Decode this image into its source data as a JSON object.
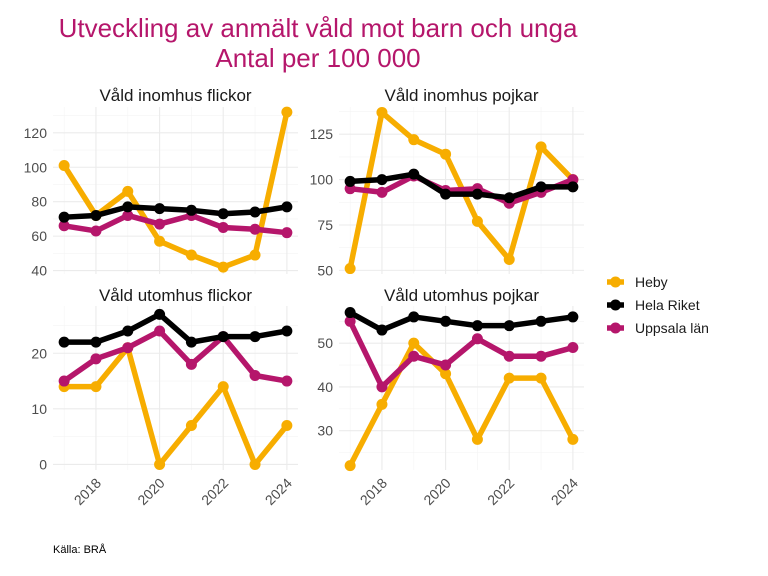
{
  "chart_data": {
    "type": "line",
    "title": "Utveckling av anmält våld mot barn och unga",
    "subtitle": "Antal per 100 000",
    "caption": "Källa: BRÅ",
    "x": [
      2017,
      2018,
      2019,
      2020,
      2021,
      2022,
      2023,
      2024
    ],
    "x_tick_labels": [
      "2018",
      "2020",
      "2022",
      "2024"
    ],
    "x_tick_values": [
      2018,
      2020,
      2022,
      2024
    ],
    "legend": {
      "position": "right",
      "entries": [
        {
          "name": "Heby",
          "color": "#f7ad00"
        },
        {
          "name": "Hela Riket",
          "color": "#000000"
        },
        {
          "name": "Uppsala län",
          "color": "#b5166b"
        }
      ]
    },
    "grid": true,
    "panels": [
      {
        "title": "Våld inomhus flickor",
        "ylim": [
          38,
          135
        ],
        "y_ticks": [
          40,
          60,
          80,
          100,
          120
        ],
        "series": [
          {
            "name": "Heby",
            "values": [
              101,
              72,
              86,
              57,
              49,
              42,
              49,
              132
            ]
          },
          {
            "name": "Hela Riket",
            "values": [
              71,
              72,
              77,
              76,
              75,
              73,
              74,
              77
            ]
          },
          {
            "name": "Uppsala län",
            "values": [
              66,
              63,
              72,
              67,
              72,
              65,
              64,
              62
            ]
          }
        ]
      },
      {
        "title": "Våld inomhus pojkar",
        "ylim": [
          48,
          140
        ],
        "y_ticks": [
          50,
          75,
          100,
          125
        ],
        "series": [
          {
            "name": "Heby",
            "values": [
              51,
              137,
              122,
              114,
              77,
              56,
              118,
              100
            ]
          },
          {
            "name": "Hela Riket",
            "values": [
              99,
              100,
              103,
              92,
              92,
              90,
              96,
              96
            ]
          },
          {
            "name": "Uppsala län",
            "values": [
              95,
              93,
              102,
              94,
              95,
              87,
              93,
              100
            ]
          }
        ]
      },
      {
        "title": "Våld utomhus flickor",
        "ylim": [
          -1,
          28.5
        ],
        "y_ticks": [
          0,
          10,
          20
        ],
        "series": [
          {
            "name": "Heby",
            "values": [
              14,
              14,
              21,
              0,
              7,
              14,
              0,
              7
            ]
          },
          {
            "name": "Hela Riket",
            "values": [
              22,
              22,
              24,
              27,
              22,
              23,
              23,
              24
            ]
          },
          {
            "name": "Uppsala län",
            "values": [
              15,
              19,
              21,
              24,
              18,
              23,
              16,
              15
            ]
          }
        ]
      },
      {
        "title": "Våld utomhus pojkar",
        "ylim": [
          21,
          58.5
        ],
        "y_ticks": [
          30,
          40,
          50
        ],
        "series": [
          {
            "name": "Heby",
            "values": [
              22,
              36,
              50,
              43,
              28,
              42,
              42,
              28
            ]
          },
          {
            "name": "Hela Riket",
            "values": [
              57,
              53,
              56,
              55,
              54,
              54,
              55,
              56
            ]
          },
          {
            "name": "Uppsala län",
            "values": [
              55,
              40,
              47,
              45,
              51,
              47,
              47,
              49
            ]
          }
        ]
      }
    ]
  }
}
